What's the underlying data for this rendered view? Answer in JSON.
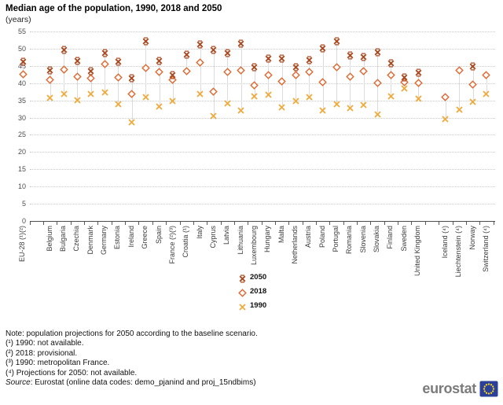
{
  "header": {
    "title": "Median age of the population, 1990, 2018 and 2050",
    "subtitle": "(years)"
  },
  "chart_data": {
    "type": "scatter",
    "title": "Median age of the population, 1990, 2018 and 2050",
    "ylabel": "(years)",
    "ylim": [
      0,
      55
    ],
    "yticks": [
      0,
      5,
      10,
      15,
      20,
      25,
      30,
      35,
      40,
      45,
      50,
      55
    ],
    "grid": true,
    "legend_position": "below-center",
    "series_meta": [
      {
        "name": "2050",
        "marker": "x-capped",
        "color": "#AC4A21"
      },
      {
        "name": "2018",
        "marker": "diamond-open",
        "color": "#E2672F"
      },
      {
        "name": "1990",
        "marker": "x-thin",
        "color": "#F2A93B"
      }
    ],
    "categories": [
      "EU-28 (¹)(²)",
      "",
      "Belgium",
      "Bulgaria",
      "Czechia",
      "Denmark",
      "Germany",
      "Estonia",
      "Ireland",
      "Greece",
      "Spain",
      "France (²)(³)",
      "Croatia (¹)",
      "Italy",
      "Cyprus",
      "Latvia",
      "Lithuania",
      "Luxembourg",
      "Hungary",
      "Malta",
      "Netherlands",
      "Austria",
      "Poland",
      "Portugal",
      "Romania",
      "Slovenia",
      "Slovakia",
      "Finland",
      "Sweden",
      "United Kingdom",
      "",
      "Iceland (⁴)",
      "Liechtenstein (⁴)",
      "Norway",
      "Switzerland (⁴)"
    ],
    "series": [
      {
        "name": "2050",
        "values": [
          46.7,
          null,
          44.1,
          50.1,
          46.9,
          44.0,
          49.2,
          46.7,
          41.9,
          52.5,
          46.8,
          42.7,
          48.7,
          51.6,
          50.0,
          49.2,
          51.9,
          45.0,
          47.6,
          47.6,
          45.1,
          47.2,
          50.6,
          52.5,
          48.5,
          48.0,
          49.3,
          46.1,
          42.2,
          43.5,
          null,
          null,
          null,
          45.2,
          null
        ]
      },
      {
        "name": "2018",
        "values": [
          43.1,
          null,
          41.5,
          44.4,
          42.3,
          41.9,
          46.0,
          42.2,
          37.4,
          44.9,
          43.7,
          41.5,
          43.9,
          46.4,
          37.9,
          43.8,
          44.1,
          39.9,
          42.8,
          41.0,
          42.7,
          43.8,
          40.8,
          45.0,
          42.3,
          43.9,
          40.6,
          42.9,
          40.8,
          40.4,
          null,
          36.5,
          44.1,
          40.0,
          42.9
        ]
      },
      {
        "name": "1990",
        "values": [
          null,
          null,
          36.2,
          37.2,
          35.4,
          37.2,
          37.7,
          34.4,
          29.2,
          36.5,
          33.7,
          35.2,
          null,
          37.3,
          30.9,
          34.6,
          32.6,
          36.6,
          37.0,
          33.5,
          35.3,
          36.4,
          32.5,
          34.3,
          33.3,
          34.1,
          31.4,
          36.6,
          38.9,
          35.9,
          null,
          30.1,
          32.8,
          35.1,
          37.3
        ]
      }
    ]
  },
  "notes": [
    "Note: population projections for 2050 according to the baseline scenario.",
    "(¹) 1990: not available.",
    "(²) 2018: provisional.",
    "(³) 1990: metropolitan France.",
    "(⁴) Projections for 2050: not available."
  ],
  "source": {
    "label": "Source",
    "text": ": Eurostat (online data codes: demo_pjanind and proj_15ndbims)"
  },
  "logo": {
    "text": "eurostat",
    "flag_blue": "#2B4099",
    "star_yellow": "#FFD617"
  }
}
